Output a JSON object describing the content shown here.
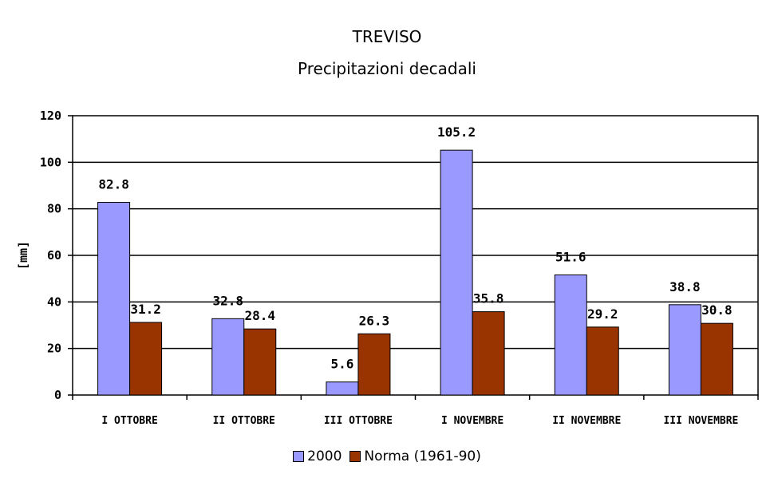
{
  "chart_data": {
    "type": "bar",
    "title": "TREVISO",
    "subtitle": "Precipitazioni decadali",
    "ylabel": "[mm]",
    "xlabel": "",
    "ylim": [
      0,
      120
    ],
    "yticks": [
      "0",
      "20",
      "40",
      "60",
      "80",
      "100",
      "120"
    ],
    "categories": [
      "I OTTOBRE",
      "II OTTOBRE",
      "III OTTOBRE",
      "I NOVEMBRE",
      "II NOVEMBRE",
      "III NOVEMBRE"
    ],
    "series": [
      {
        "name": "2000",
        "values": [
          82.8,
          32.8,
          5.6,
          105.2,
          51.6,
          38.8
        ],
        "labels": [
          "82.8",
          "32.8",
          "5.6",
          "105.2",
          "51.6",
          "38.8"
        ],
        "color": "#9999ff"
      },
      {
        "name": "Norma (1961-90)",
        "values": [
          31.2,
          28.4,
          26.3,
          35.8,
          29.2,
          30.8
        ],
        "labels": [
          "31.2",
          "28.4",
          "26.3",
          "35.8",
          "29.2",
          "30.8"
        ],
        "color": "#993300"
      }
    ],
    "grid": true,
    "legend_position": "bottom"
  }
}
